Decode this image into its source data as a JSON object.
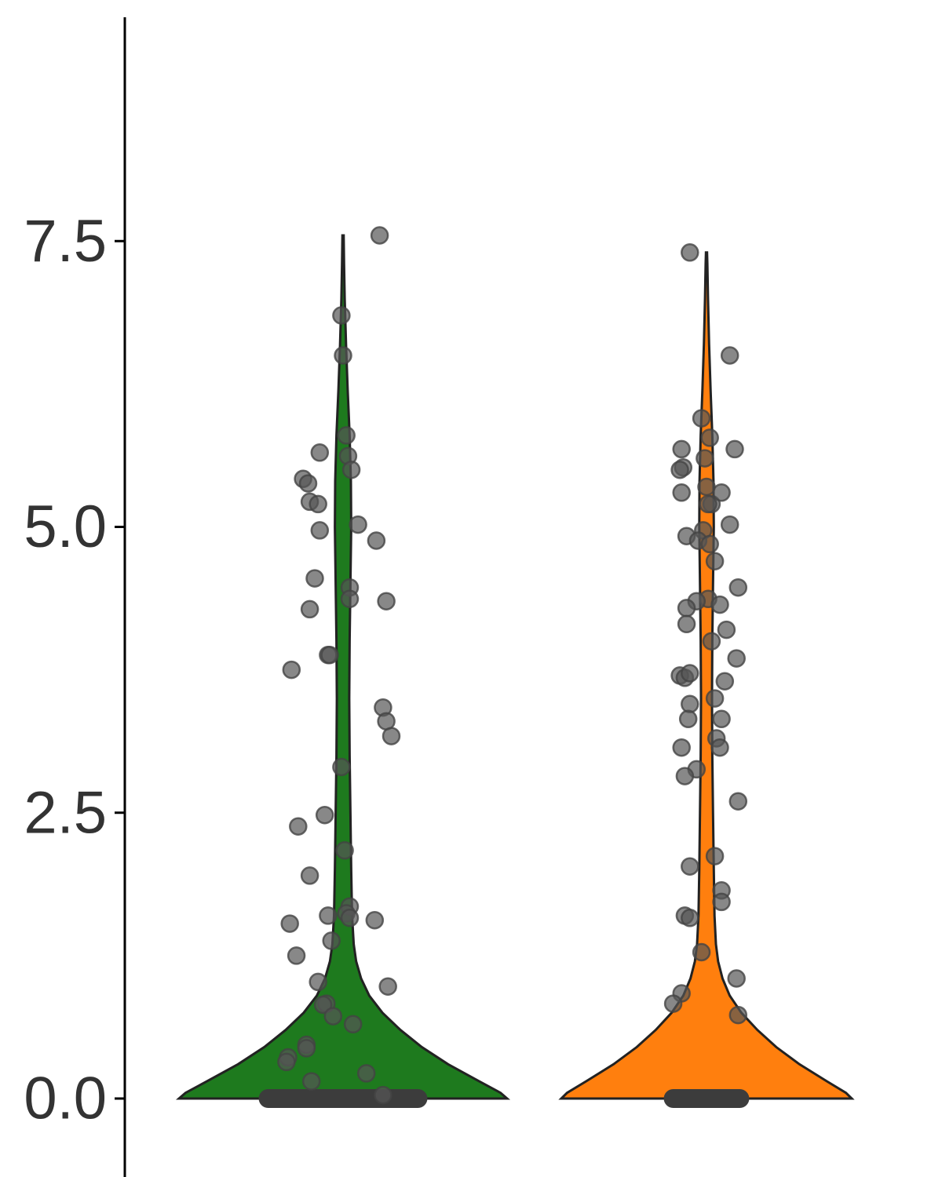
{
  "chart_data": {
    "type": "violin",
    "title": "",
    "xlabel": "",
    "ylabel": "",
    "ylim": [
      -0.45,
      9.25
    ],
    "y_ticks": [
      0,
      2.5,
      5,
      7.5
    ],
    "y_tick_labels": [
      "0.0",
      "2.5",
      "5.0",
      "7.5"
    ],
    "x_ticks": 2,
    "grid": false,
    "legend": "none",
    "point_color": "#555555",
    "series": [
      {
        "fill": "#1e7a1e",
        "max_value": 7.55,
        "zero_range": [
          -0.45,
          0.45
        ],
        "points": [
          [
            0.22,
            7.55
          ],
          [
            -0.01,
            6.85
          ],
          [
            0.0,
            6.5
          ],
          [
            0.02,
            5.8
          ],
          [
            0.03,
            5.62
          ],
          [
            0.05,
            5.5
          ],
          [
            -0.14,
            5.65
          ],
          [
            -0.24,
            5.42
          ],
          [
            -0.21,
            5.38
          ],
          [
            -0.2,
            5.22
          ],
          [
            -0.15,
            5.2
          ],
          [
            0.09,
            5.02
          ],
          [
            -0.14,
            4.97
          ],
          [
            0.2,
            4.88
          ],
          [
            -0.17,
            4.55
          ],
          [
            0.04,
            4.47
          ],
          [
            0.04,
            4.37
          ],
          [
            0.26,
            4.35
          ],
          [
            -0.2,
            4.28
          ],
          [
            -0.09,
            3.88
          ],
          [
            -0.08,
            3.88
          ],
          [
            -0.31,
            3.75
          ],
          [
            0.24,
            3.42
          ],
          [
            0.26,
            3.3
          ],
          [
            0.29,
            3.17
          ],
          [
            -0.01,
            2.9
          ],
          [
            -0.11,
            2.48
          ],
          [
            -0.27,
            2.38
          ],
          [
            0.01,
            2.17
          ],
          [
            -0.2,
            1.95
          ],
          [
            0.04,
            1.68
          ],
          [
            0.02,
            1.62
          ],
          [
            -0.09,
            1.6
          ],
          [
            0.04,
            1.58
          ],
          [
            0.19,
            1.56
          ],
          [
            -0.32,
            1.53
          ],
          [
            -0.07,
            1.38
          ],
          [
            -0.28,
            1.25
          ],
          [
            -0.15,
            1.02
          ],
          [
            0.27,
            0.98
          ],
          [
            -0.1,
            0.83
          ],
          [
            -0.12,
            0.82
          ],
          [
            -0.06,
            0.72
          ],
          [
            0.06,
            0.65
          ],
          [
            -0.22,
            0.47
          ],
          [
            -0.22,
            0.44
          ],
          [
            -0.33,
            0.36
          ],
          [
            -0.34,
            0.32
          ],
          [
            0.14,
            0.22
          ],
          [
            -0.19,
            0.15
          ],
          [
            0.24,
            0.03
          ]
        ]
      },
      {
        "fill": "#ff7f0e",
        "max_value": 7.4,
        "zero_range": [
          -0.2,
          0.2
        ],
        "points": [
          [
            -0.1,
            7.4
          ],
          [
            0.14,
            6.5
          ],
          [
            -0.03,
            5.95
          ],
          [
            0.02,
            5.78
          ],
          [
            -0.15,
            5.68
          ],
          [
            0.17,
            5.68
          ],
          [
            -0.01,
            5.6
          ],
          [
            -0.14,
            5.52
          ],
          [
            -0.16,
            5.5
          ],
          [
            0.0,
            5.35
          ],
          [
            0.03,
            5.2
          ],
          [
            -0.15,
            5.3
          ],
          [
            0.09,
            5.3
          ],
          [
            0.01,
            5.2
          ],
          [
            0.14,
            5.02
          ],
          [
            -0.12,
            4.92
          ],
          [
            -0.02,
            4.97
          ],
          [
            -0.05,
            4.88
          ],
          [
            0.02,
            4.85
          ],
          [
            0.05,
            4.7
          ],
          [
            0.19,
            4.47
          ],
          [
            0.01,
            4.37
          ],
          [
            -0.06,
            4.35
          ],
          [
            0.08,
            4.32
          ],
          [
            -0.12,
            4.29
          ],
          [
            -0.12,
            4.15
          ],
          [
            0.12,
            4.1
          ],
          [
            0.03,
            4.0
          ],
          [
            0.18,
            3.85
          ],
          [
            -0.16,
            3.7
          ],
          [
            -0.13,
            3.68
          ],
          [
            -0.1,
            3.72
          ],
          [
            0.11,
            3.65
          ],
          [
            0.05,
            3.5
          ],
          [
            -0.1,
            3.45
          ],
          [
            -0.11,
            3.32
          ],
          [
            0.09,
            3.32
          ],
          [
            0.06,
            3.15
          ],
          [
            0.08,
            3.07
          ],
          [
            -0.15,
            3.07
          ],
          [
            -0.06,
            2.88
          ],
          [
            -0.13,
            2.82
          ],
          [
            0.19,
            2.6
          ],
          [
            0.05,
            2.12
          ],
          [
            -0.1,
            2.03
          ],
          [
            0.09,
            1.82
          ],
          [
            0.09,
            1.72
          ],
          [
            -0.13,
            1.6
          ],
          [
            -0.1,
            1.58
          ],
          [
            -0.03,
            1.28
          ],
          [
            0.18,
            1.05
          ],
          [
            -0.15,
            0.92
          ],
          [
            -0.2,
            0.83
          ],
          [
            0.19,
            0.73
          ]
        ]
      }
    ]
  }
}
